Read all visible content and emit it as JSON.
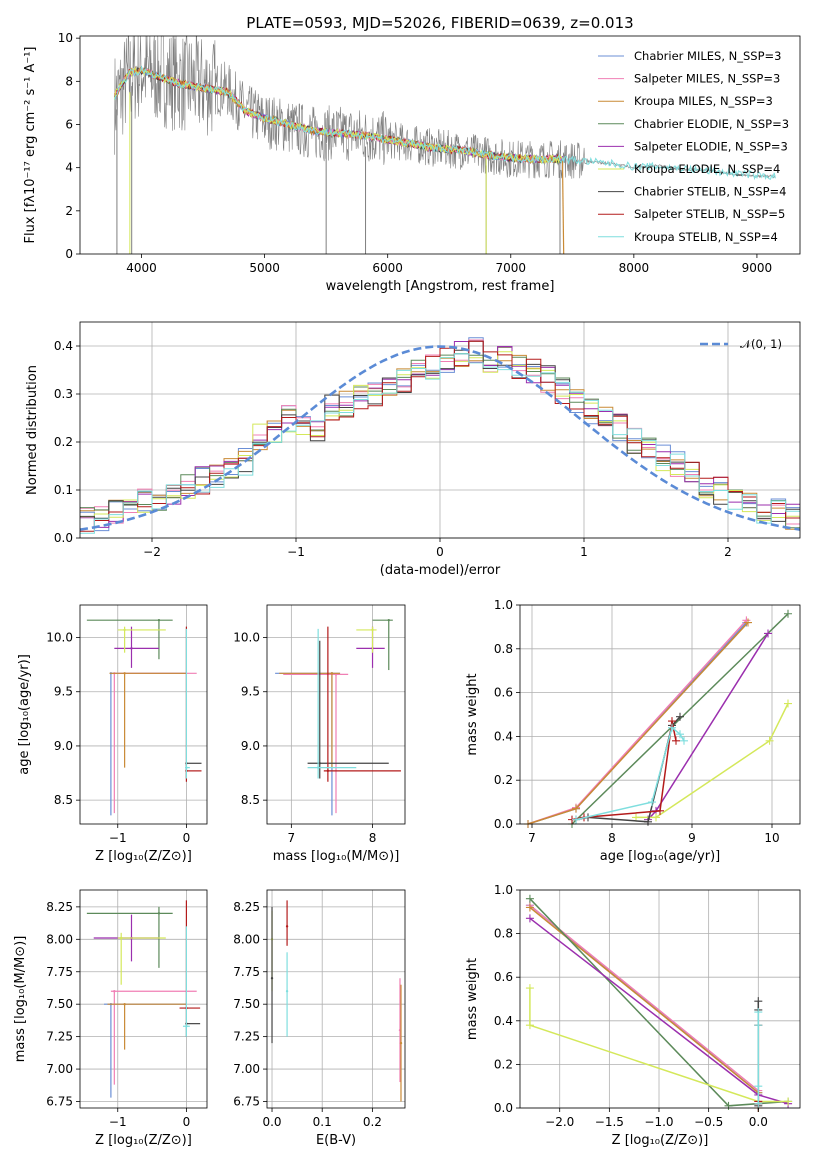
{
  "chart_data": [
    {
      "type": "line",
      "title": "PLATE=0593, MJD=52026, FIBERID=0639, z=0.013",
      "xlabel": "wavelength [Angstrom, rest frame]",
      "ylabel": "Flux [fλ10⁻¹⁷ erg cm⁻² s⁻¹ A⁻¹]",
      "xlim": [
        3500,
        9350
      ],
      "ylim": [
        0,
        10.1
      ],
      "xticks": [
        4000,
        5000,
        6000,
        7000,
        8000,
        9000
      ],
      "yticks": [
        0,
        2,
        4,
        6,
        8,
        10
      ],
      "legend_position": "upper-right",
      "data_continuum": {
        "x": [
          3780,
          3900,
          4000,
          4150,
          4300,
          4500,
          4700,
          4850,
          5000,
          5200,
          5400,
          5600,
          5800,
          6000,
          6200,
          6400,
          6600,
          6800,
          7000,
          7200,
          7400,
          7600,
          7800,
          8000,
          8200,
          8400,
          8600,
          8800,
          9000,
          9150
        ],
        "y": [
          7.0,
          8.2,
          8.6,
          8.3,
          8.0,
          7.8,
          7.6,
          6.6,
          6.2,
          5.9,
          5.6,
          5.6,
          5.5,
          5.3,
          5.1,
          4.9,
          4.8,
          4.6,
          4.4,
          4.4,
          4.4,
          4.3,
          4.2,
          4.0,
          4.1,
          3.9,
          3.9,
          3.7,
          3.6,
          3.6
        ]
      },
      "model_continuum": {
        "x": [
          3780,
          3900,
          4000,
          4150,
          4300,
          4500,
          4700,
          4850,
          5000,
          5200,
          5400,
          5600,
          5800,
          6000,
          6200,
          6400,
          6600,
          6800,
          7000,
          7200,
          7400,
          7600,
          7800,
          8000,
          8200,
          8400,
          8600,
          8800,
          9000,
          9150
        ],
        "y": [
          7.3,
          8.4,
          8.5,
          8.2,
          7.9,
          7.7,
          7.5,
          6.6,
          6.3,
          6.0,
          5.7,
          5.6,
          5.5,
          5.3,
          5.1,
          4.9,
          4.8,
          4.6,
          4.45,
          4.4,
          4.4,
          4.3,
          4.2,
          4.05,
          4.05,
          3.95,
          3.85,
          3.75,
          3.65,
          3.6
        ]
      },
      "series": [
        {
          "name": "Chabrier MILES, N_SSP=3",
          "color": "#6b8fd6"
        },
        {
          "name": "Salpeter MILES, N_SSP=3",
          "color": "#f07fb4"
        },
        {
          "name": "Kroupa MILES, N_SSP=3",
          "color": "#c98a35"
        },
        {
          "name": "Chabrier ELODIE, N_SSP=3",
          "color": "#5c8a5a"
        },
        {
          "name": "Salpeter ELODIE, N_SSP=3",
          "color": "#9b2fae"
        },
        {
          "name": "Kroupa ELODIE, N_SSP=4",
          "color": "#d4e85a"
        },
        {
          "name": "Chabrier STELIB, N_SSP=4",
          "color": "#444444"
        },
        {
          "name": "Salpeter STELIB, N_SSP=5",
          "color": "#b31b1b"
        },
        {
          "name": "Kroupa STELIB, N_SSP=4",
          "color": "#7fdede"
        }
      ]
    },
    {
      "type": "step",
      "xlabel": "(data-model)/error",
      "ylabel": "Normed distribution",
      "xlim": [
        -2.5,
        2.5
      ],
      "ylim": [
        0,
        0.45
      ],
      "xticks": [
        -2,
        -1,
        0,
        1,
        2
      ],
      "yticks": [
        0.0,
        0.1,
        0.2,
        0.3,
        0.4
      ],
      "legend": "𝒩(0, 1)",
      "legend_position": "upper-right",
      "gaussian": {
        "mean": 0,
        "sigma": 1,
        "color": "#5b8bd6"
      },
      "bins": [
        -2.5,
        2.5,
        50
      ],
      "base_hist": [
        0.035,
        0.04,
        0.05,
        0.05,
        0.075,
        0.08,
        0.09,
        0.11,
        0.12,
        0.135,
        0.15,
        0.16,
        0.21,
        0.22,
        0.25,
        0.23,
        0.22,
        0.27,
        0.28,
        0.295,
        0.3,
        0.31,
        0.33,
        0.35,
        0.36,
        0.37,
        0.38,
        0.39,
        0.36,
        0.37,
        0.36,
        0.35,
        0.33,
        0.31,
        0.29,
        0.26,
        0.25,
        0.23,
        0.2,
        0.19,
        0.17,
        0.15,
        0.13,
        0.11,
        0.1,
        0.085,
        0.07,
        0.06,
        0.055,
        0.045
      ]
    },
    {
      "type": "scatter-errorbar",
      "xlabel": "Z [log₁₀(Z/Z⊙)]",
      "ylabel": "age  [log₁₀(age/yr)]",
      "xlim": [
        -1.55,
        0.3
      ],
      "ylim": [
        8.28,
        10.3
      ],
      "xticks": [
        -1,
        0
      ],
      "yticks": [
        8.5,
        9.0,
        9.5,
        10.0
      ],
      "points": [
        {
          "x": -1.1,
          "y": 9.67,
          "xlo": -1.1,
          "xhi": 0.0,
          "ylo": 8.36,
          "yhi": 9.67,
          "color": "#6b8fd6"
        },
        {
          "x": -1.05,
          "y": 9.67,
          "xlo": -1.05,
          "xhi": 0.15,
          "ylo": 8.38,
          "yhi": 9.67,
          "color": "#f07fb4"
        },
        {
          "x": -0.9,
          "y": 9.67,
          "xlo": -1.12,
          "xhi": 0.0,
          "ylo": 8.8,
          "yhi": 9.67,
          "color": "#c98a35"
        },
        {
          "x": -0.4,
          "y": 10.16,
          "xlo": -1.45,
          "xhi": -0.2,
          "ylo": 9.8,
          "yhi": 10.16,
          "color": "#5c8a5a"
        },
        {
          "x": -0.8,
          "y": 9.9,
          "xlo": -1.05,
          "xhi": -0.4,
          "ylo": 9.72,
          "yhi": 10.1,
          "color": "#9b2fae"
        },
        {
          "x": -0.9,
          "y": 10.07,
          "xlo": -1.0,
          "xhi": -0.3,
          "ylo": 9.86,
          "yhi": 10.1,
          "color": "#d4e85a"
        },
        {
          "x": 0.0,
          "y": 8.84,
          "xlo": 0.0,
          "xhi": 0.22,
          "ylo": 8.7,
          "yhi": 8.84,
          "color": "#444444"
        },
        {
          "x": 0.0,
          "y": 8.77,
          "xlo": 0.0,
          "xhi": 0.22,
          "ylo": 8.67,
          "yhi": 10.1,
          "color": "#b31b1b"
        },
        {
          "x": 0.0,
          "y": 8.8,
          "xlo": -0.02,
          "xhi": 0.05,
          "ylo": 8.7,
          "yhi": 10.08,
          "color": "#7fdede"
        }
      ]
    },
    {
      "type": "scatter-errorbar",
      "xlabel": "mass [log₁₀(M/M⊙)]",
      "ylabel": "",
      "xlim": [
        6.7,
        8.4
      ],
      "ylim": [
        8.28,
        10.3
      ],
      "xticks": [
        7,
        8
      ],
      "yticks": [
        8.5,
        9.0,
        9.5,
        10.0
      ],
      "points": [
        {
          "x": 7.5,
          "y": 9.67,
          "xlo": 6.8,
          "xhi": 7.6,
          "ylo": 8.36,
          "yhi": 9.67,
          "color": "#6b8fd6"
        },
        {
          "x": 7.55,
          "y": 9.66,
          "xlo": 6.9,
          "xhi": 7.7,
          "ylo": 8.38,
          "yhi": 9.66,
          "color": "#f07fb4"
        },
        {
          "x": 7.5,
          "y": 9.67,
          "xlo": 6.85,
          "xhi": 7.6,
          "ylo": 8.8,
          "yhi": 9.67,
          "color": "#c98a35"
        },
        {
          "x": 8.2,
          "y": 10.16,
          "xlo": 8.0,
          "xhi": 8.25,
          "ylo": 9.7,
          "yhi": 10.16,
          "color": "#5c8a5a"
        },
        {
          "x": 8.0,
          "y": 9.9,
          "xlo": 7.8,
          "xhi": 8.15,
          "ylo": 9.72,
          "yhi": 10.1,
          "color": "#9b2fae"
        },
        {
          "x": 8.0,
          "y": 10.07,
          "xlo": 7.8,
          "xhi": 8.05,
          "ylo": 9.86,
          "yhi": 10.1,
          "color": "#d4e85a"
        },
        {
          "x": 7.35,
          "y": 8.84,
          "xlo": 7.2,
          "xhi": 8.2,
          "ylo": 8.7,
          "yhi": 9.97,
          "color": "#444444"
        },
        {
          "x": 7.45,
          "y": 8.77,
          "xlo": 7.4,
          "xhi": 8.35,
          "ylo": 8.67,
          "yhi": 10.1,
          "color": "#b31b1b"
        },
        {
          "x": 7.33,
          "y": 8.8,
          "xlo": 7.2,
          "xhi": 7.8,
          "ylo": 8.7,
          "yhi": 10.08,
          "color": "#7fdede"
        }
      ]
    },
    {
      "type": "line",
      "xlabel": "age  [log₁₀(age/yr)]",
      "ylabel": "mass weight",
      "xlim": [
        6.85,
        10.35
      ],
      "ylim": [
        0,
        1
      ],
      "xticks": [
        7,
        8,
        9,
        10
      ],
      "yticks": [
        0.0,
        0.2,
        0.4,
        0.6,
        0.8,
        1.0
      ],
      "series": [
        {
          "color": "#6b8fd6",
          "x": [
            6.95,
            7.55,
            9.68
          ],
          "y": [
            0.0,
            0.07,
            0.92
          ]
        },
        {
          "color": "#f07fb4",
          "x": [
            6.95,
            7.55,
            9.68
          ],
          "y": [
            0.0,
            0.075,
            0.93
          ]
        },
        {
          "color": "#c98a35",
          "x": [
            6.95,
            7.55,
            9.7
          ],
          "y": [
            0.0,
            0.07,
            0.92
          ]
        },
        {
          "color": "#5c8a5a",
          "x": [
            7.5,
            10.2
          ],
          "y": [
            0.0,
            0.96
          ]
        },
        {
          "color": "#9b2fae",
          "x": [
            8.45,
            8.55,
            9.95
          ],
          "y": [
            0.02,
            0.06,
            0.87
          ]
        },
        {
          "color": "#d4e85a",
          "x": [
            8.3,
            8.55,
            9.97,
            10.2
          ],
          "y": [
            0.03,
            0.03,
            0.38,
            0.55
          ]
        },
        {
          "color": "#444444",
          "x": [
            7.55,
            7.7,
            8.45,
            8.75,
            8.85
          ],
          "y": [
            0.02,
            0.03,
            0.01,
            0.45,
            0.49
          ]
        },
        {
          "color": "#b31b1b",
          "x": [
            7.5,
            7.65,
            8.6,
            8.75,
            8.8
          ],
          "y": [
            0.02,
            0.03,
            0.06,
            0.47,
            0.38
          ]
        },
        {
          "color": "#7fdede",
          "x": [
            7.55,
            8.5,
            8.75,
            8.85,
            8.9
          ],
          "y": [
            0.02,
            0.1,
            0.44,
            0.41,
            0.38
          ]
        }
      ]
    },
    {
      "type": "scatter-errorbar",
      "xlabel": "Z [log₁₀(Z/Z⊙)]",
      "ylabel": "mass [log₁₀(M/M⊙)]",
      "xlim": [
        -1.55,
        0.3
      ],
      "ylim": [
        6.7,
        8.38
      ],
      "xticks": [
        -1,
        0
      ],
      "yticks": [
        6.75,
        7.0,
        7.25,
        7.5,
        7.75,
        8.0,
        8.25
      ],
      "points": [
        {
          "x": -1.1,
          "y": 7.5,
          "xlo": -1.2,
          "xhi": 0.0,
          "ylo": 6.78,
          "yhi": 7.5,
          "color": "#6b8fd6"
        },
        {
          "x": -1.05,
          "y": 7.6,
          "xlo": -1.1,
          "xhi": 0.15,
          "ylo": 6.88,
          "yhi": 7.6,
          "color": "#f07fb4"
        },
        {
          "x": -0.9,
          "y": 7.5,
          "xlo": -1.15,
          "xhi": 0.0,
          "ylo": 7.15,
          "yhi": 7.5,
          "color": "#c98a35"
        },
        {
          "x": -0.4,
          "y": 8.2,
          "xlo": -1.45,
          "xhi": -0.2,
          "ylo": 7.78,
          "yhi": 8.25,
          "color": "#5c8a5a"
        },
        {
          "x": -0.8,
          "y": 8.01,
          "xlo": -1.35,
          "xhi": -0.4,
          "ylo": 7.83,
          "yhi": 8.19,
          "color": "#9b2fae"
        },
        {
          "x": -0.95,
          "y": 8.01,
          "xlo": -1.0,
          "xhi": -0.3,
          "ylo": 7.65,
          "yhi": 8.05,
          "color": "#d4e85a"
        },
        {
          "x": 0.0,
          "y": 7.35,
          "xlo": 0.0,
          "xhi": 0.2,
          "ylo": 7.25,
          "yhi": 7.35,
          "color": "#444444"
        },
        {
          "x": 0.0,
          "y": 7.47,
          "xlo": -0.1,
          "xhi": 0.2,
          "ylo": 7.35,
          "yhi": 8.3,
          "color": "#b31b1b"
        },
        {
          "x": 0.0,
          "y": 7.33,
          "xlo": -0.05,
          "xhi": 0.05,
          "ylo": 7.25,
          "yhi": 8.1,
          "color": "#7fdede"
        }
      ]
    },
    {
      "type": "scatter-errorbar",
      "xlabel": "E(B-V)",
      "ylabel": "",
      "xlim": [
        -0.01,
        0.265
      ],
      "ylim": [
        6.7,
        8.38
      ],
      "xticks": [
        0.0,
        0.1,
        0.2
      ],
      "yticks": [
        6.75,
        7.0,
        7.25,
        7.5,
        7.75,
        8.0,
        8.25
      ],
      "points": [
        {
          "x": 0.255,
          "y": 7.3,
          "ylo": 6.9,
          "yhi": 7.7,
          "color": "#f07fb4"
        },
        {
          "x": 0.257,
          "y": 7.2,
          "ylo": 6.75,
          "yhi": 7.65,
          "color": "#c98a35"
        },
        {
          "x": 0.0,
          "y": 8.0,
          "ylo": 7.6,
          "yhi": 8.22,
          "color": "#d4e85a"
        },
        {
          "x": 0.0,
          "y": 7.7,
          "ylo": 7.2,
          "yhi": 8.25,
          "color": "#444444"
        },
        {
          "x": 0.03,
          "y": 8.1,
          "ylo": 7.95,
          "yhi": 8.3,
          "color": "#b31b1b"
        },
        {
          "x": 0.03,
          "y": 7.6,
          "ylo": 7.25,
          "yhi": 7.9,
          "color": "#7fdede"
        }
      ]
    },
    {
      "type": "line",
      "xlabel": "Z [log₁₀(Z/Z⊙)]",
      "ylabel": "mass weight",
      "xlim": [
        -2.4,
        0.42
      ],
      "ylim": [
        0,
        1
      ],
      "xticks": [
        -2.0,
        -1.5,
        -1.0,
        -0.5,
        0.0
      ],
      "xticklabels": [
        "−2.0",
        "−1.5",
        "−1.0",
        "−0.5",
        "0.0"
      ],
      "yticks": [
        0.0,
        0.2,
        0.4,
        0.6,
        0.8,
        1.0
      ],
      "series": [
        {
          "color": "#6b8fd6",
          "x": [
            -2.3,
            0.0,
            0.0
          ],
          "y": [
            0.93,
            0.07,
            0.0
          ]
        },
        {
          "color": "#f07fb4",
          "x": [
            -2.3,
            0.0,
            0.0
          ],
          "y": [
            0.93,
            0.08,
            0.0
          ]
        },
        {
          "color": "#c98a35",
          "x": [
            -2.3,
            0.0,
            0.0
          ],
          "y": [
            0.92,
            0.07,
            0.0
          ]
        },
        {
          "color": "#5c8a5a",
          "x": [
            -2.3,
            -0.3,
            0.3
          ],
          "y": [
            0.96,
            0.01,
            0.03
          ]
        },
        {
          "color": "#9b2fae",
          "x": [
            -2.3,
            0.0,
            0.3
          ],
          "y": [
            0.87,
            0.06,
            0.02
          ]
        },
        {
          "color": "#d4e85a",
          "x": [
            -2.3,
            -2.3,
            0.0,
            0.3
          ],
          "y": [
            0.55,
            0.38,
            0.03,
            0.03
          ]
        },
        {
          "color": "#444444",
          "x": [
            0.0,
            0.0,
            0.0,
            0.0
          ],
          "y": [
            0.01,
            0.45,
            0.49,
            0.02
          ]
        },
        {
          "color": "#b31b1b",
          "x": [
            0.0,
            0.0,
            0.0
          ],
          "y": [
            0.03,
            0.38,
            0.02
          ]
        },
        {
          "color": "#7fdede",
          "x": [
            0.0,
            0.0,
            0.0,
            0.0
          ],
          "y": [
            0.02,
            0.44,
            0.38,
            0.1
          ]
        }
      ]
    }
  ]
}
